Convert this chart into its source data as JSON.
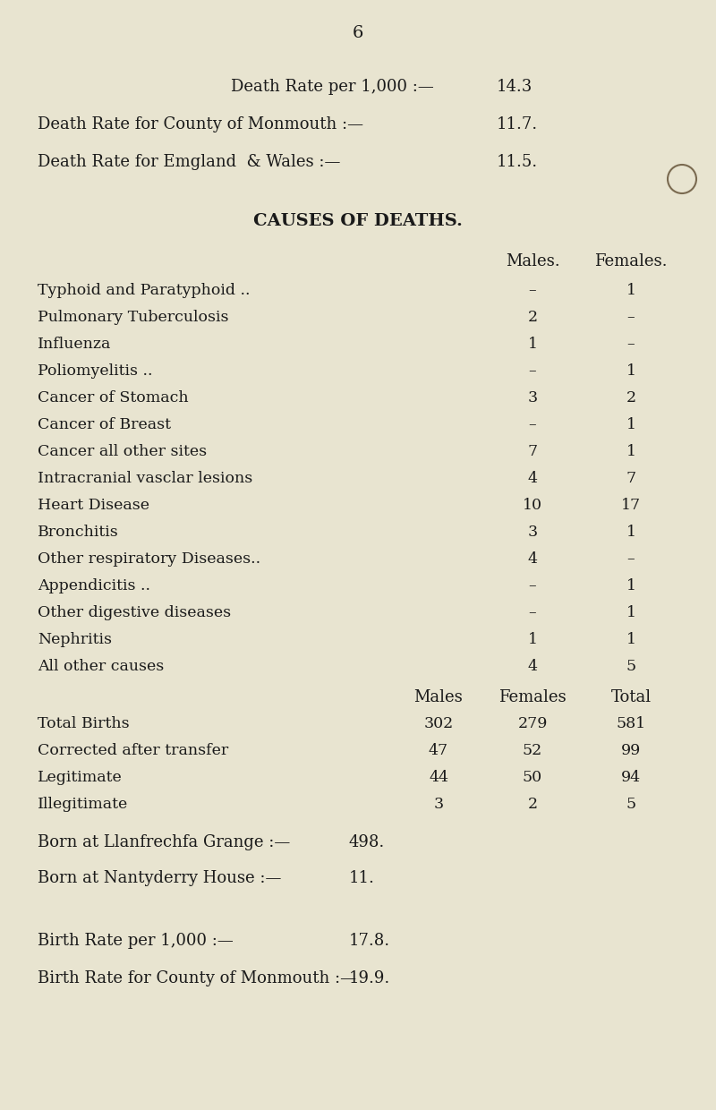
{
  "page_number": "6",
  "bg_color": "#e8e4d0",
  "text_color": "#1a1a1a",
  "death_rate_lines": [
    {
      "label": "Death Rate per 1,000 :—",
      "value": "14.3",
      "indent": true
    },
    {
      "label": "Death Rate for County of Monmouth :—",
      "value": "11.7.",
      "indent": false
    },
    {
      "label": "Death Rate for Emgland  & Wales :—",
      "value": "11.5.",
      "indent": false
    }
  ],
  "section_title": "CAUSES OF DEATHS.",
  "causes_header": [
    "Males.",
    "Females."
  ],
  "causes": [
    {
      "label": "Typhoid and Paratyphoid ..",
      "dots": ".. ..",
      "male": "–",
      "female": "1"
    },
    {
      "label": "Pulmonary Tuberculosis",
      "dots": ".. ..",
      "male": "2",
      "female": "–"
    },
    {
      "label": "Influenza",
      "dots": ".. .. .. ..",
      "male": "1",
      "female": "–"
    },
    {
      "label": "Poliomyelitis ..",
      "dots": ".. ..",
      "male": "–",
      "female": "1"
    },
    {
      "label": "Cancer of Stomach",
      "dots": ".. ..",
      "male": "3",
      "female": "2"
    },
    {
      "label": "Cancer of Breast",
      "dots": ".. .. ..",
      "male": "–",
      "female": "1"
    },
    {
      "label": "Cancer all other sites",
      "dots": ".. ..",
      "male": "7",
      "female": "1"
    },
    {
      "label": "Intracranial vasclar lesions",
      "dots": ".. ..",
      "male": "4",
      "female": "7"
    },
    {
      "label": "Heart Disease",
      "dots": ".. .. ..",
      "male": "10",
      "female": "17"
    },
    {
      "label": "Bronchitis",
      "dots": ".. .. ..",
      "male": "3",
      "female": "1"
    },
    {
      "label": "Other respiratory Diseases..",
      "dots": ".. ..",
      "male": "4",
      "female": "–"
    },
    {
      "label": "Appendicitis ..",
      "dots": ".. .. ..",
      "male": "–",
      "female": "1"
    },
    {
      "label": "Other digestive diseases",
      "dots": ".. ..",
      "male": "–",
      "female": "1"
    },
    {
      "label": "Nephritis",
      "dots": ".. .. .. ..",
      "male": "1",
      "female": "1"
    },
    {
      "label": "All other causes",
      "dots": ".. .. ..",
      "male": "4",
      "female": "5"
    }
  ],
  "births_header": [
    "Males",
    "Females",
    "Total"
  ],
  "births": [
    {
      "label": "Total Births",
      "dots": ".. .. ..",
      "male": "302",
      "female": "279",
      "total": "581"
    },
    {
      "label": "Corrected after transfer",
      "dots": ",...",
      "male": "47",
      "female": "52",
      "total": "99"
    },
    {
      "label": "Legitimate",
      "dots": ".. .. ..",
      "male": "44",
      "female": "50",
      "total": "94"
    },
    {
      "label": "Illegitimate",
      "dots": ".. .. ..",
      "male": "3",
      "female": "2",
      "total": "5"
    }
  ],
  "born_lines": [
    {
      "label": "Born at Llanfrechfa Grange :—",
      "value": "498."
    },
    {
      "label": "Born at Nantyderry House :—",
      "value": "11."
    }
  ],
  "birth_rate_lines": [
    {
      "label": "Birth Rate per 1,000 :—",
      "value": "17.8."
    },
    {
      "label": "Birth Rate for County of Monmouth :—",
      "value": "19.9."
    }
  ]
}
